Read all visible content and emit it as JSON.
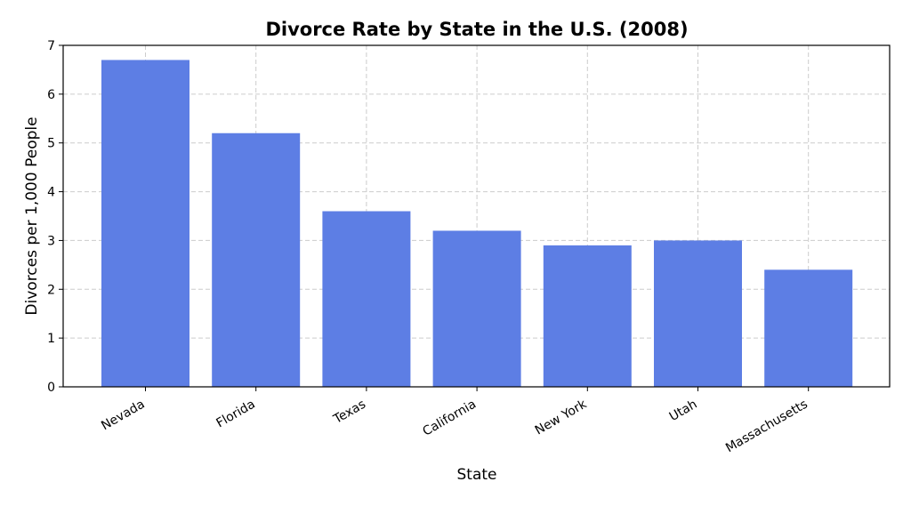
{
  "chart_data": {
    "type": "bar",
    "title": "Divorce Rate by State in the U.S. (2008)",
    "xlabel": "State",
    "ylabel": "Divorces per 1,000 People",
    "categories": [
      "Nevada",
      "Florida",
      "Texas",
      "California",
      "New York",
      "Utah",
      "Massachusetts"
    ],
    "values": [
      6.7,
      5.2,
      3.6,
      3.2,
      2.9,
      3.0,
      2.4
    ],
    "ylim": [
      0,
      7
    ],
    "yticks": [
      0,
      1,
      2,
      3,
      4,
      5,
      6,
      7
    ],
    "grid": true,
    "legend": "none",
    "bar_color": "#5d7ee4"
  }
}
